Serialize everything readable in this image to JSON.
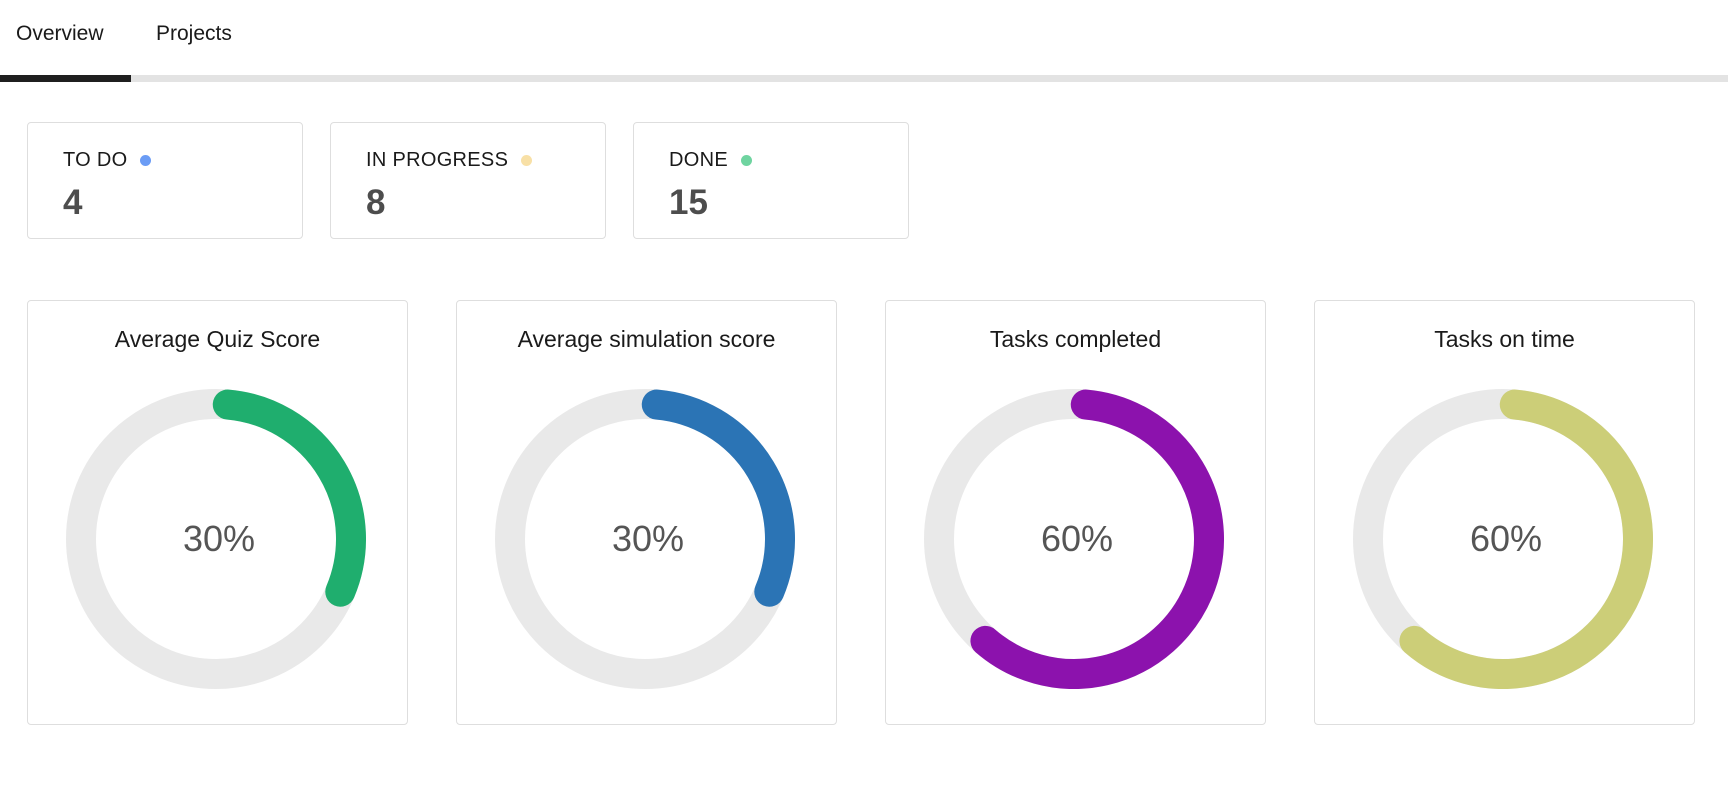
{
  "tabs": [
    {
      "label": "Overview",
      "active": true
    },
    {
      "label": "Projects",
      "active": false
    }
  ],
  "stats": [
    {
      "label": "TO DO",
      "value": "4",
      "dot_color": "#6b9cf5"
    },
    {
      "label": "IN PROGRESS",
      "value": "8",
      "dot_color": "#f8e0a6"
    },
    {
      "label": "DONE",
      "value": "15",
      "dot_color": "#6fd4a0"
    }
  ],
  "gauges": [
    {
      "title": "Average Quiz Score",
      "value_label": "30%",
      "percent": 30,
      "color": "#1fae6e"
    },
    {
      "title": "Average simulation score",
      "value_label": "30%",
      "percent": 30,
      "color": "#2b74b5"
    },
    {
      "title": "Tasks completed",
      "value_label": "60%",
      "percent": 60,
      "color": "#8c12ad"
    },
    {
      "title": "Tasks on time",
      "value_label": "60%",
      "percent": 60,
      "color": "#ccce78"
    }
  ],
  "colors": {
    "track": "#e9e9e9",
    "tab_indicator": "#1f1f1f",
    "tab_track": "#e3e3e3"
  }
}
